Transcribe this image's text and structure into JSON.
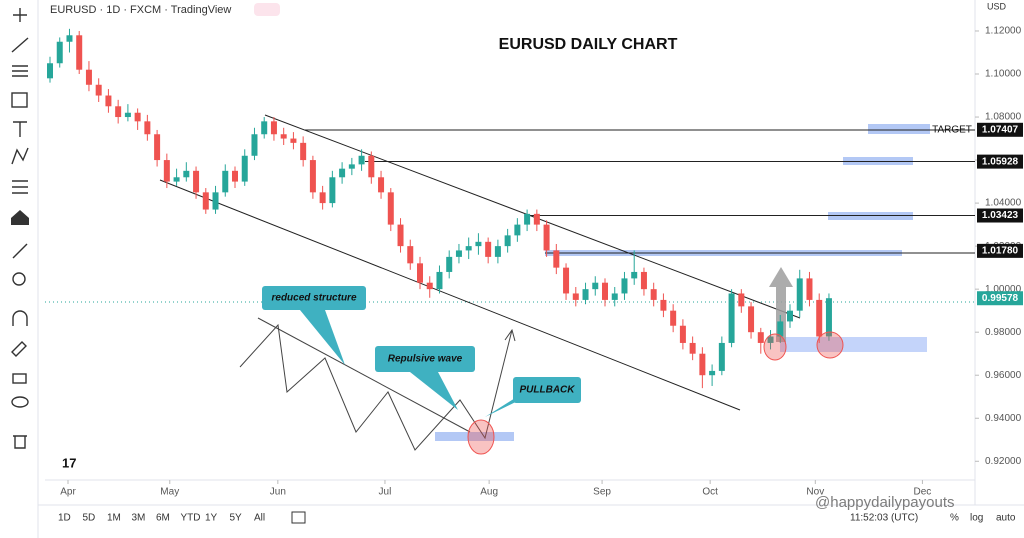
{
  "header": {
    "symbol": "EURUSD · 1D · FXCM · TradingView",
    "currency": "USD"
  },
  "ranges": [
    "1D",
    "5D",
    "1M",
    "3M",
    "6M",
    "YTD",
    "1Y",
    "5Y",
    "All"
  ],
  "footer": {
    "time": "11:52:03 (UTC)",
    "percent": "%",
    "log": "log",
    "auto": "auto",
    "watermark": "@happydailypayouts"
  },
  "annotations": {
    "reduced": "reduced structure",
    "repulsive": "Repulsive wave",
    "pullback": "PULLBACK",
    "target": "TARGET"
  },
  "chart_data": {
    "type": "candlestick",
    "title": "EURUSD DAILY CHART",
    "up_color": "#26a69a",
    "down_color": "#ef5350",
    "xlim": [
      0,
      95
    ],
    "ylim": [
      0.902,
      1.1344
    ],
    "xticks": [
      {
        "value": 1.85,
        "label": "Apr"
      },
      {
        "value": 12.3,
        "label": "May"
      },
      {
        "value": 23.4,
        "label": "Jun"
      },
      {
        "value": 34.4,
        "label": "Jul"
      },
      {
        "value": 45.1,
        "label": "Aug"
      },
      {
        "value": 56.7,
        "label": "Sep"
      },
      {
        "value": 67.8,
        "label": "Oct"
      },
      {
        "value": 78.6,
        "label": "Nov"
      },
      {
        "value": 89.6,
        "label": "Dec"
      }
    ],
    "yticks": [
      {
        "value": 0.92,
        "label": "0.92000"
      },
      {
        "value": 0.94,
        "label": "0.94000"
      },
      {
        "value": 0.96,
        "label": "0.96000"
      },
      {
        "value": 0.98,
        "label": "0.98000"
      },
      {
        "value": 1.0,
        "label": "1.00000"
      },
      {
        "value": 1.02,
        "label": "1.02000"
      },
      {
        "value": 1.04,
        "label": "1.04000"
      },
      {
        "value": 1.06,
        "label": "1.06000"
      },
      {
        "value": 1.08,
        "label": "1.08000"
      },
      {
        "value": 1.1,
        "label": "1.10000"
      },
      {
        "value": 1.12,
        "label": "1.12000"
      }
    ],
    "price_labels": [
      {
        "value": 1.07407,
        "label": "1.07407"
      },
      {
        "value": 1.05928,
        "label": "1.05928"
      },
      {
        "value": 1.03423,
        "label": "1.03423"
      },
      {
        "value": 1.0178,
        "label": "1.01780"
      },
      {
        "value": 0.99578,
        "label": "0.99578"
      }
    ],
    "candles": [
      [
        1.098,
        1.108,
        1.096,
        1.105
      ],
      [
        1.105,
        1.117,
        1.103,
        1.115
      ],
      [
        1.115,
        1.121,
        1.11,
        1.118
      ],
      [
        1.118,
        1.12,
        1.1,
        1.102
      ],
      [
        1.102,
        1.106,
        1.092,
        1.095
      ],
      [
        1.095,
        1.098,
        1.087,
        1.09
      ],
      [
        1.09,
        1.093,
        1.082,
        1.085
      ],
      [
        1.085,
        1.088,
        1.077,
        1.08
      ],
      [
        1.08,
        1.086,
        1.078,
        1.082
      ],
      [
        1.082,
        1.084,
        1.074,
        1.078
      ],
      [
        1.078,
        1.081,
        1.069,
        1.072
      ],
      [
        1.072,
        1.074,
        1.057,
        1.06
      ],
      [
        1.06,
        1.063,
        1.047,
        1.05
      ],
      [
        1.05,
        1.056,
        1.048,
        1.052
      ],
      [
        1.052,
        1.059,
        1.05,
        1.055
      ],
      [
        1.055,
        1.057,
        1.042,
        1.045
      ],
      [
        1.045,
        1.047,
        1.035,
        1.037
      ],
      [
        1.037,
        1.048,
        1.035,
        1.045
      ],
      [
        1.045,
        1.058,
        1.043,
        1.055
      ],
      [
        1.055,
        1.057,
        1.047,
        1.05
      ],
      [
        1.05,
        1.065,
        1.048,
        1.062
      ],
      [
        1.062,
        1.075,
        1.06,
        1.072
      ],
      [
        1.072,
        1.08,
        1.07,
        1.078
      ],
      [
        1.078,
        1.08,
        1.069,
        1.072
      ],
      [
        1.072,
        1.075,
        1.067,
        1.07
      ],
      [
        1.07,
        1.073,
        1.065,
        1.068
      ],
      [
        1.068,
        1.071,
        1.057,
        1.06
      ],
      [
        1.06,
        1.062,
        1.042,
        1.045
      ],
      [
        1.045,
        1.048,
        1.037,
        1.04
      ],
      [
        1.04,
        1.055,
        1.038,
        1.052
      ],
      [
        1.052,
        1.059,
        1.049,
        1.056
      ],
      [
        1.056,
        1.061,
        1.053,
        1.058
      ],
      [
        1.058,
        1.065,
        1.055,
        1.062
      ],
      [
        1.062,
        1.064,
        1.049,
        1.052
      ],
      [
        1.052,
        1.055,
        1.042,
        1.045
      ],
      [
        1.045,
        1.047,
        1.027,
        1.03
      ],
      [
        1.03,
        1.033,
        1.017,
        1.02
      ],
      [
        1.02,
        1.023,
        1.009,
        1.012
      ],
      [
        1.012,
        1.015,
        1.0,
        1.003
      ],
      [
        1.003,
        1.006,
        0.996,
        1.0
      ],
      [
        1.0,
        1.011,
        0.998,
        1.008
      ],
      [
        1.008,
        1.018,
        1.005,
        1.015
      ],
      [
        1.015,
        1.021,
        1.012,
        1.018
      ],
      [
        1.018,
        1.024,
        1.014,
        1.02
      ],
      [
        1.02,
        1.026,
        1.016,
        1.022
      ],
      [
        1.022,
        1.024,
        1.012,
        1.015
      ],
      [
        1.015,
        1.023,
        1.012,
        1.02
      ],
      [
        1.02,
        1.028,
        1.017,
        1.025
      ],
      [
        1.025,
        1.033,
        1.022,
        1.03
      ],
      [
        1.03,
        1.037,
        1.027,
        1.035
      ],
      [
        1.035,
        1.037,
        1.027,
        1.03
      ],
      [
        1.03,
        1.032,
        1.015,
        1.018
      ],
      [
        1.018,
        1.021,
        1.007,
        1.01
      ],
      [
        1.01,
        1.012,
        0.995,
        0.998
      ],
      [
        0.998,
        1.001,
        0.992,
        0.995
      ],
      [
        0.995,
        1.003,
        0.993,
        1.0
      ],
      [
        1.0,
        1.006,
        0.997,
        1.003
      ],
      [
        1.003,
        1.005,
        0.992,
        0.995
      ],
      [
        0.995,
        1.001,
        0.992,
        0.998
      ],
      [
        0.998,
        1.008,
        0.995,
        1.005
      ],
      [
        1.005,
        1.018,
        1.002,
        1.008
      ],
      [
        1.008,
        1.01,
        0.997,
        1.0
      ],
      [
        1.0,
        1.003,
        0.992,
        0.995
      ],
      [
        0.995,
        0.998,
        0.987,
        0.99
      ],
      [
        0.99,
        0.993,
        0.98,
        0.983
      ],
      [
        0.983,
        0.986,
        0.972,
        0.975
      ],
      [
        0.975,
        0.978,
        0.967,
        0.97
      ],
      [
        0.97,
        0.973,
        0.954,
        0.96
      ],
      [
        0.96,
        0.965,
        0.955,
        0.962
      ],
      [
        0.962,
        0.978,
        0.96,
        0.975
      ],
      [
        0.975,
        1.0,
        0.973,
        0.998
      ],
      [
        0.998,
        1.0,
        0.989,
        0.992
      ],
      [
        0.992,
        0.994,
        0.977,
        0.98
      ],
      [
        0.98,
        0.982,
        0.97,
        0.975
      ],
      [
        0.975,
        0.981,
        0.972,
        0.978
      ],
      [
        0.978,
        0.988,
        0.975,
        0.985
      ],
      [
        0.985,
        0.993,
        0.982,
        0.99
      ],
      [
        0.99,
        1.009,
        0.987,
        1.005
      ],
      [
        1.005,
        1.008,
        0.992,
        0.995
      ],
      [
        0.995,
        0.998,
        0.975,
        0.978
      ],
      [
        0.978,
        0.998,
        0.976,
        0.9958
      ]
    ]
  }
}
